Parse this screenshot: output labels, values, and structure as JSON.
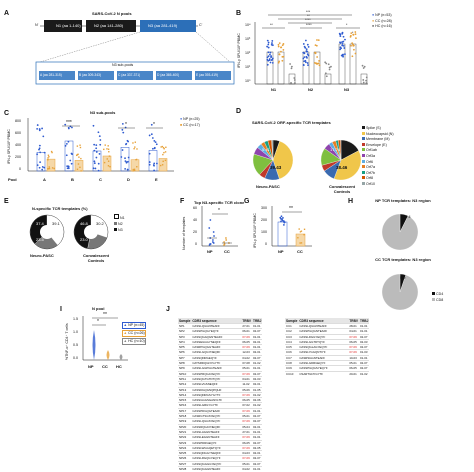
{
  "colors": {
    "np": "#2f5bd0",
    "cc": "#e7a23a",
    "hc": "#888888",
    "dark": "#1a1a1a",
    "n3": "#2c6fb8"
  },
  "panelA": {
    "label": "A",
    "title": "SARS-CoV-2 N pools",
    "n_term": "N'",
    "c_term": "C'",
    "pools": [
      "N1 (aa 1-140)",
      "N2 (aa 141-280)",
      "N3 (aa 281-419)"
    ],
    "subtitle": "N3 sub-pools",
    "subpools": [
      "A (aa 281-315)",
      "B (aa 309-343)",
      "C (aa 337-371)",
      "D (aa 365-400)",
      "E (aa 393-419)"
    ]
  },
  "panelB": {
    "label": "B",
    "ylabel": "IFN-γ SFU/10⁶ PBMC",
    "legend": [
      "NP (n=53)",
      "CC (n=28)",
      "HC (n=16)"
    ],
    "groups": [
      "N1",
      "N2",
      "N3"
    ],
    "yticks": [
      "10⁴",
      "10³",
      "10²",
      "10¹",
      "10⁰"
    ],
    "sig": [
      "***",
      "**",
      "****",
      "**",
      "****",
      "*",
      "*"
    ]
  },
  "panelC": {
    "label": "C",
    "title": "N3 sub-pools",
    "ylabel": "IFN-γ SFU/10⁶ PBMC",
    "legend": [
      "NP (n=25)",
      "CC (n=17)"
    ],
    "pool_label": "Pool",
    "pools": [
      "A",
      "B",
      "C",
      "D",
      "E"
    ],
    "yticks": [
      "800",
      "600",
      "400",
      "200",
      "0"
    ],
    "sig": [
      "***",
      "*",
      "*"
    ]
  },
  "panelD": {
    "label": "D",
    "title": "SARS-CoV-2 ORF-specific TCR templates",
    "pies": [
      {
        "name": "Neuro-PASC",
        "big": "39.43",
        "small": "5.41"
      },
      {
        "name": "Convalescent Controls",
        "big": "38.46",
        "small": "17.26"
      }
    ],
    "legend": [
      "Spike (S)",
      "Nucleocapsid (N)",
      "Membrane (M)",
      "Envelope (E)",
      "Orf1ab",
      "Orf3a",
      "Orf6",
      "Orf7a",
      "Orf7b",
      "Orf8",
      "Orf10"
    ]
  },
  "panelE": {
    "label": "E",
    "title": "N-specific TCR templates (%)",
    "legend": [
      "N1",
      "N2",
      "N3"
    ],
    "donuts": [
      {
        "name": "Neuro-PASC",
        "values": [
          "39.1",
          "23.5",
          "37.4"
        ]
      },
      {
        "name": "Convalescent Controls",
        "values": [
          "30.2",
          "23.0",
          "46.8"
        ]
      }
    ]
  },
  "panelF": {
    "label": "F",
    "title": "Top N3-specific TCR clone",
    "ylabel": "Number of templates",
    "yticks": [
      "60",
      "40",
      "20",
      "0"
    ],
    "groups": [
      "NP",
      "CC"
    ],
    "sig": "*"
  },
  "panelG": {
    "label": "G",
    "ylabel": "IFN-γ SFU/10⁶ PBMC",
    "yticks": [
      "300",
      "200",
      "100",
      "0"
    ],
    "groups": [
      "NP",
      "CC"
    ],
    "sig": "**"
  },
  "panelH": {
    "label": "H",
    "pies": [
      {
        "title": "NP TCR templates: N3 region",
        "small": "7.4",
        "big": "92.6"
      },
      {
        "title": "CC TCR templates: N3 region",
        "small": "5.2",
        "big": "94.8"
      }
    ],
    "legend": [
      "CD4",
      "CD8"
    ]
  },
  "panelI": {
    "label": "I",
    "title": "N pool",
    "ylabel": "%TNF-α⁺ CD4⁺ T cells",
    "legend": [
      "NP (n=45)",
      "CC (n=26)",
      "HC (n=10)"
    ],
    "groups": [
      "NP",
      "CC",
      "HC"
    ],
    "yticks": [
      "1.5",
      "1.0",
      "0.5",
      "0.0"
    ],
    "sig": [
      "**",
      "*"
    ]
  },
  "panelJ": {
    "label": "J",
    "headers": [
      "Sample",
      "CDR3 sequence",
      "TRBV",
      "TRBJ"
    ],
    "left": [
      [
        "NP1",
        "CASSLQGGNTEAFF",
        "27-01",
        "01-01",
        0
      ],
      [
        "NP2",
        "CASSPGQGYEQYF",
        "06-01",
        "02-07",
        0
      ],
      [
        "NP3",
        "CASSQGAQGNTEAFF",
        "07-09",
        "01-01",
        1
      ],
      [
        "NP4",
        "CASSEGGGYNEQFF",
        "06-05",
        "02-01",
        0
      ],
      [
        "NP5",
        "CASRPGQGGTEAFF",
        "07-09",
        "01-01",
        1
      ],
      [
        "NP6",
        "CASSLGQGYNEQFF",
        "12-03",
        "02-01",
        0
      ],
      [
        "NP7",
        "CASSQDRGEQYF",
        "04-02",
        "02-07",
        0
      ],
      [
        "NP8",
        "CATSRDQGNYGYTF",
        "07-08",
        "01-02",
        0
      ],
      [
        "NP9",
        "CASSLGGPGGTEAFF",
        "05-01",
        "01-01",
        0
      ],
      [
        "NP10",
        "CASSPRQGAYEQYF",
        "07-09",
        "02-07",
        1
      ],
      [
        "NP11",
        "CASSQGTGTDTQYF",
        "04-01",
        "02-03",
        0
      ],
      [
        "NP12",
        "CASSLVGSNEQFF",
        "11-02",
        "02-01",
        0
      ],
      [
        "NP13",
        "CASSDGQGNQPQHF",
        "05-06",
        "01-05",
        0
      ],
      [
        "NP14",
        "CASSQDRGSYGYTF",
        "07-09",
        "01-02",
        1
      ],
      [
        "NP15",
        "CASSGGGSGANVLTF",
        "06-05",
        "02-06",
        0
      ],
      [
        "NP16",
        "CASSLGRGYGYTF",
        "07-02",
        "01-02",
        0
      ],
      [
        "NP17",
        "CASSPDGQGTEAFF",
        "07-09",
        "01-01",
        1
      ],
      [
        "NP18",
        "CASRGTSGSYEQYF",
        "05-01",
        "02-07",
        0
      ],
      [
        "NP19",
        "CASSLQGGSYEQYF",
        "07-09",
        "02-07",
        1
      ],
      [
        "NP20",
        "CASSRQGAYNEQFF",
        "05-04",
        "02-01",
        0
      ],
      [
        "NP21",
        "CASSLAGGNTEAFF",
        "27-01",
        "01-01",
        0
      ],
      [
        "NP22",
        "CASSLEGGNTEAFF",
        "07-09",
        "01-01",
        1
      ],
      [
        "NP23",
        "CASSPDRGEQYF",
        "06-05",
        "02-07",
        0
      ],
      [
        "NP24",
        "CASSLWGGQETQYF",
        "07-09",
        "02-05",
        1
      ],
      [
        "NP25",
        "CASSQDGGYNEQFF",
        "04-03",
        "02-01",
        0
      ],
      [
        "NP26",
        "CASSLRGQGYEQYF",
        "07-09",
        "02-07",
        1
      ],
      [
        "NP27",
        "CASSQGGGGYEQYF",
        "05-01",
        "02-07",
        0
      ],
      [
        "NP28",
        "CASSQGGGNTEAFF",
        "04-02",
        "01-01",
        0
      ]
    ],
    "right": [
      [
        "CC1",
        "CASSLQGGNTEAFF",
        "28-01",
        "01-01",
        0
      ],
      [
        "CC2",
        "CASSPGQGNTEAFF",
        "04-01",
        "01-01",
        0
      ],
      [
        "CC3",
        "CASSLDGGYEQYF",
        "07-09",
        "02-07",
        1
      ],
      [
        "CC4",
        "CASSLGGTDTQYF",
        "06-05",
        "02-03",
        0
      ],
      [
        "CC5",
        "CASSQGLAGYEQYF",
        "07-09",
        "02-07",
        1
      ],
      [
        "CC6",
        "CASSLYGGQNTIYF",
        "07-09",
        "01-03",
        1
      ],
      [
        "CC7",
        "CASRSGGNTEAFF",
        "10-03",
        "01-01",
        0
      ],
      [
        "CC8",
        "CASSLGDRGEQYF",
        "05-01",
        "02-07",
        0
      ],
      [
        "CC9",
        "CASSPGQGSYEQYF",
        "06-05",
        "02-07",
        0
      ],
      [
        "CC10",
        "CSARTGNYGYTF",
        "20-01",
        "01-02",
        0
      ]
    ]
  }
}
